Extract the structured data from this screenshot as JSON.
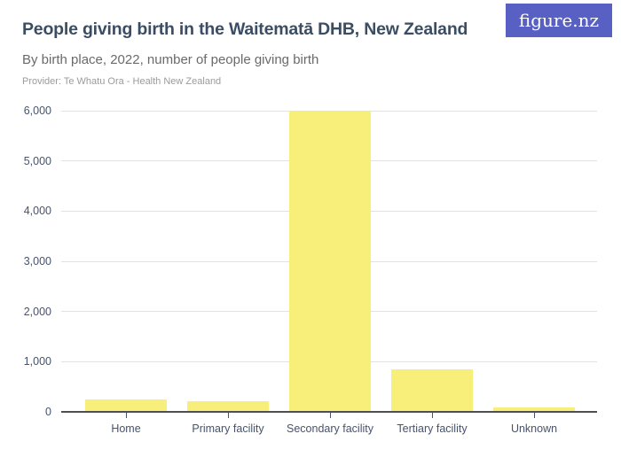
{
  "header": {
    "title": "People giving birth in the Waitematā DHB, New Zealand",
    "subtitle": "By birth place, 2022, number of people giving birth",
    "provider": "Provider: Te Whatu Ora - Health New Zealand",
    "logo_text": "figure.nz"
  },
  "colors": {
    "bar": "#F8EF7A",
    "title": "#3B4D63",
    "subtitle": "#6A6A6A",
    "provider": "#9B9B9B",
    "axis_label": "#46536E",
    "gridline": "#E2E2E2",
    "axis_line": "#4F4F4F",
    "logo_bg": "#5860C4",
    "logo_fg": "#FFFFFF"
  },
  "chart_data": {
    "type": "bar",
    "title": "People giving birth in the Waitematā DHB, New Zealand",
    "subtitle": "By birth place, 2022, number of people giving birth",
    "categories": [
      "Home",
      "Primary facility",
      "Secondary facility",
      "Tertiary facility",
      "Unknown"
    ],
    "values": [
      240,
      205,
      5980,
      850,
      85
    ],
    "xlabel": "",
    "ylabel": "",
    "ylim": [
      0,
      6000
    ],
    "ytick_interval": 1000,
    "ytick_labels": [
      "0",
      "1,000",
      "2,000",
      "3,000",
      "4,000",
      "5,000",
      "6,000"
    ],
    "grid": true,
    "legend": false,
    "bar_color": "#F8EF7A"
  }
}
